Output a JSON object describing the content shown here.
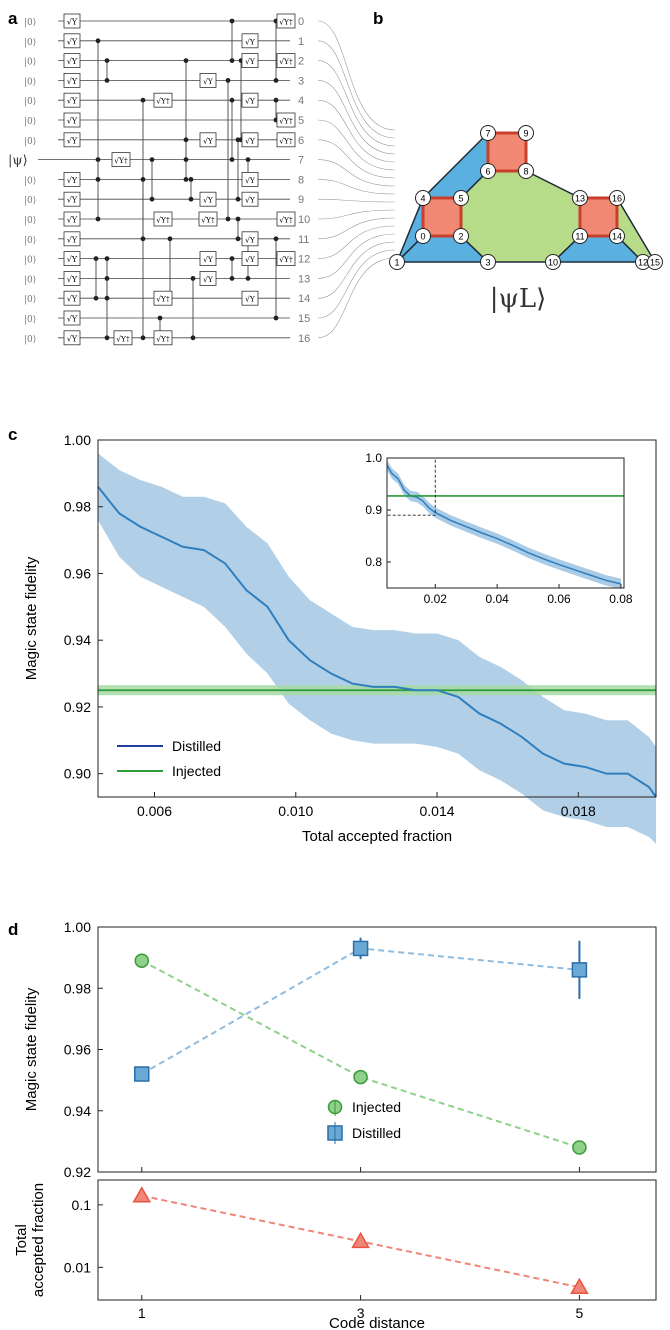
{
  "panels": {
    "a": {
      "label": "a",
      "init_label": "|0⟩",
      "psi_label": "|ψ⟩",
      "gate_sy": "√Y",
      "gate_sydag": "√Y†",
      "qubit_labels": [
        "0",
        "1",
        "2",
        "3",
        "4",
        "5",
        "6",
        "7",
        "8",
        "9",
        "10",
        "11",
        "12",
        "13",
        "14",
        "15",
        "16"
      ]
    },
    "b": {
      "label": "b",
      "logical_state": "|ψL⟩",
      "node_labels": [
        "0",
        "1",
        "2",
        "3",
        "4",
        "5",
        "6",
        "7",
        "8",
        "9",
        "10",
        "11",
        "12",
        "13",
        "14",
        "15",
        "16"
      ]
    },
    "c": {
      "label": "c"
    },
    "d": {
      "label": "d"
    }
  },
  "colors": {
    "distilled": "#2f7fbf",
    "distilled_band": "#a9cbe6",
    "injected": "#2e9a3a",
    "injected_band": "#a6d9a3",
    "plaquette_blue": "#5ab0de",
    "plaquette_green": "#b6dc8a",
    "plaquette_red": "#f08873",
    "triangle_red": "#e8553e",
    "triangle_fill": "#f0857a",
    "square_fill": "#6aa8d6",
    "circle_fill": "#8fd08a"
  },
  "chart_data": [
    {
      "panel": "c",
      "type": "line",
      "xlabel": "Total accepted fraction",
      "ylabel": "Magic state fidelity",
      "xlim": [
        0.0044,
        0.0202
      ],
      "ylim": [
        0.893,
        1.0
      ],
      "xticks": [
        "0.006",
        "0.010",
        "0.014",
        "0.018"
      ],
      "xtick_values": [
        0.006,
        0.01,
        0.014,
        0.018
      ],
      "yticks": [
        "0.90",
        "0.92",
        "0.94",
        "0.96",
        "0.98",
        "1.00"
      ],
      "ytick_values": [
        0.9,
        0.92,
        0.94,
        0.96,
        0.98,
        1.0
      ],
      "series": [
        {
          "name": "Distilled",
          "x": [
            0.0044,
            0.005,
            0.0056,
            0.0062,
            0.0068,
            0.0074,
            0.008,
            0.0086,
            0.0092,
            0.0098,
            0.0104,
            0.011,
            0.0116,
            0.0122,
            0.0128,
            0.0134,
            0.014,
            0.0146,
            0.0152,
            0.0158,
            0.0164,
            0.017,
            0.0176,
            0.0182,
            0.0188,
            0.0194,
            0.02,
            0.0202
          ],
          "y": [
            0.986,
            0.978,
            0.974,
            0.971,
            0.968,
            0.967,
            0.963,
            0.955,
            0.95,
            0.94,
            0.934,
            0.93,
            0.927,
            0.926,
            0.926,
            0.925,
            0.925,
            0.923,
            0.918,
            0.915,
            0.911,
            0.906,
            0.903,
            0.902,
            0.9,
            0.9,
            0.896,
            0.893
          ],
          "band_low": [
            0.976,
            0.965,
            0.959,
            0.956,
            0.953,
            0.95,
            0.944,
            0.936,
            0.93,
            0.921,
            0.916,
            0.912,
            0.91,
            0.909,
            0.909,
            0.909,
            0.908,
            0.906,
            0.901,
            0.898,
            0.894,
            0.889,
            0.887,
            0.886,
            0.884,
            0.884,
            0.881,
            0.879
          ],
          "band_high": [
            0.996,
            0.991,
            0.988,
            0.986,
            0.983,
            0.983,
            0.981,
            0.974,
            0.969,
            0.959,
            0.952,
            0.948,
            0.944,
            0.943,
            0.943,
            0.942,
            0.942,
            0.94,
            0.935,
            0.932,
            0.928,
            0.923,
            0.919,
            0.918,
            0.916,
            0.916,
            0.911,
            0.908
          ]
        },
        {
          "name": "Injected",
          "x": [
            0.0044,
            0.0202
          ],
          "y": [
            0.925,
            0.925
          ],
          "band_low": [
            0.9235,
            0.9235
          ],
          "band_high": [
            0.9265,
            0.9265
          ]
        }
      ],
      "legend": "bottom-left",
      "inset": {
        "type": "line",
        "xlim": [
          0.0044,
          0.081
        ],
        "ylim": [
          0.75,
          1.0
        ],
        "xticks": [
          "0.02",
          "0.04",
          "0.06",
          "0.08"
        ],
        "xtick_values": [
          0.02,
          0.04,
          0.06,
          0.08
        ],
        "yticks": [
          "0.8",
          "0.9",
          "1.0"
        ],
        "ytick_values": [
          0.8,
          0.9,
          1.0
        ],
        "distilled": {
          "x": [
            0.0044,
            0.006,
            0.008,
            0.01,
            0.012,
            0.014,
            0.016,
            0.018,
            0.02,
            0.025,
            0.03,
            0.035,
            0.04,
            0.045,
            0.05,
            0.055,
            0.06,
            0.065,
            0.07,
            0.075,
            0.08
          ],
          "y": [
            0.986,
            0.97,
            0.96,
            0.938,
            0.927,
            0.925,
            0.917,
            0.904,
            0.895,
            0.88,
            0.868,
            0.856,
            0.845,
            0.832,
            0.818,
            0.806,
            0.795,
            0.785,
            0.775,
            0.765,
            0.758
          ]
        },
        "injected": 0.927,
        "zoom_box": {
          "x": [
            0.0044,
            0.02
          ],
          "y": [
            0.89,
            1.0
          ]
        }
      }
    },
    {
      "panel": "d-top",
      "type": "scatter",
      "xlabel": "",
      "ylabel": "Magic state fidelity",
      "xlim": [
        0.6,
        5.7
      ],
      "ylim": [
        0.92,
        1.0
      ],
      "yticks": [
        "0.92",
        "0.94",
        "0.96",
        "0.98",
        "1.00"
      ],
      "ytick_values": [
        0.92,
        0.94,
        0.96,
        0.98,
        1.0
      ],
      "series": [
        {
          "name": "Injected",
          "x": [
            1,
            3,
            5
          ],
          "y": [
            0.989,
            0.951,
            0.928
          ],
          "err": [
            0.0007,
            0.0007,
            0.0008
          ]
        },
        {
          "name": "Distilled",
          "x": [
            1,
            3,
            5
          ],
          "y": [
            0.952,
            0.993,
            0.986
          ],
          "err": [
            0.001,
            0.0035,
            0.0095
          ]
        }
      ],
      "legend": "bottom-center"
    },
    {
      "panel": "d-bottom",
      "type": "scatter",
      "xlabel": "Code distance",
      "ylabel": "Total accepted fraction",
      "yscale": "log",
      "xlim": [
        0.6,
        5.7
      ],
      "ylim": [
        0.003,
        0.25
      ],
      "xticks": [
        "1",
        "3",
        "5"
      ],
      "xtick_values": [
        1,
        3,
        5
      ],
      "yticks": [
        "0.1",
        "0.01"
      ],
      "ytick_values": [
        0.1,
        0.01
      ],
      "series": [
        {
          "x": [
            1,
            3,
            5
          ],
          "y": [
            0.14,
            0.026,
            0.0048
          ]
        }
      ]
    }
  ]
}
